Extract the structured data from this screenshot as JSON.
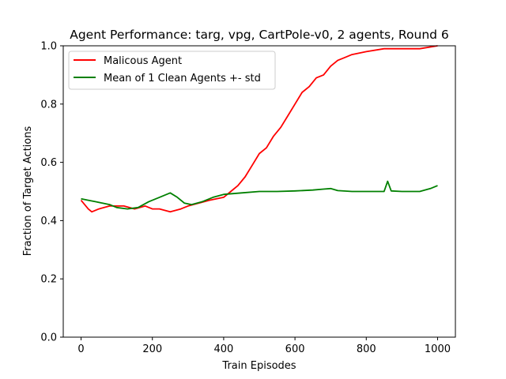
{
  "chart_data": {
    "type": "line",
    "title": "Agent Performance: targ, vpg, CartPole-v0, 2 agents, Round 6",
    "xlabel": "Train Episodes",
    "ylabel": "Fraction of Target Actions",
    "xlim": [
      -50,
      1050
    ],
    "ylim": [
      0.0,
      1.0
    ],
    "xticks": [
      0,
      200,
      400,
      600,
      800,
      1000
    ],
    "yticks": [
      0.0,
      0.2,
      0.4,
      0.6,
      0.8,
      1.0
    ],
    "xtick_labels": [
      "0",
      "200",
      "400",
      "600",
      "800",
      "1000"
    ],
    "ytick_labels": [
      "0.0",
      "0.2",
      "0.4",
      "0.6",
      "0.8",
      "1.0"
    ],
    "grid": false,
    "legend_position": "top-left",
    "series": [
      {
        "name": "Malicous Agent",
        "color": "#ff0000",
        "x": [
          0,
          20,
          30,
          50,
          80,
          120,
          150,
          180,
          200,
          220,
          250,
          280,
          300,
          330,
          360,
          400,
          420,
          440,
          460,
          480,
          500,
          520,
          540,
          560,
          580,
          600,
          620,
          640,
          660,
          680,
          700,
          720,
          740,
          760,
          800,
          850,
          900,
          950,
          1000
        ],
        "values": [
          0.47,
          0.44,
          0.43,
          0.44,
          0.45,
          0.45,
          0.44,
          0.45,
          0.44,
          0.44,
          0.43,
          0.44,
          0.45,
          0.46,
          0.47,
          0.48,
          0.5,
          0.52,
          0.55,
          0.59,
          0.63,
          0.65,
          0.69,
          0.72,
          0.76,
          0.8,
          0.84,
          0.86,
          0.89,
          0.9,
          0.93,
          0.95,
          0.96,
          0.97,
          0.98,
          0.99,
          0.99,
          0.99,
          1.0
        ]
      },
      {
        "name": "Mean of 1 Clean Agents +- std",
        "color": "#008000",
        "x": [
          0,
          20,
          40,
          60,
          80,
          100,
          130,
          160,
          190,
          220,
          250,
          270,
          290,
          310,
          340,
          370,
          400,
          450,
          500,
          550,
          600,
          650,
          680,
          700,
          720,
          760,
          800,
          850,
          860,
          870,
          900,
          950,
          980,
          1000
        ],
        "values": [
          0.475,
          0.47,
          0.465,
          0.46,
          0.455,
          0.445,
          0.44,
          0.445,
          0.465,
          0.48,
          0.495,
          0.48,
          0.46,
          0.455,
          0.465,
          0.48,
          0.49,
          0.495,
          0.5,
          0.5,
          0.502,
          0.505,
          0.508,
          0.51,
          0.503,
          0.5,
          0.5,
          0.5,
          0.535,
          0.502,
          0.5,
          0.5,
          0.51,
          0.52
        ]
      }
    ]
  }
}
